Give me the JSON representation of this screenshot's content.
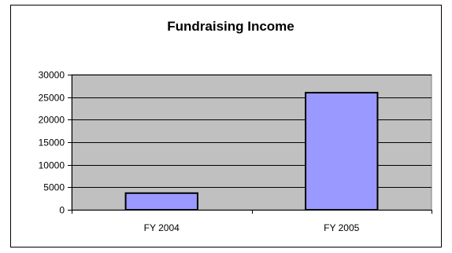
{
  "chart_data": {
    "type": "bar",
    "title": "Fundraising Income",
    "xlabel": "",
    "ylabel": "",
    "categories": [
      "FY 2004",
      "FY 2005"
    ],
    "values": [
      3700,
      26000
    ],
    "ylim": [
      0,
      30000
    ],
    "yticks": [
      0,
      5000,
      10000,
      15000,
      20000,
      25000,
      30000
    ],
    "ytick_labels": [
      "0",
      "5000",
      "10000",
      "15000",
      "20000",
      "25000",
      "30000"
    ],
    "grid": true,
    "legend": "none",
    "colors": {
      "bar_fill": "#9999ff",
      "bar_stroke": "#000000",
      "plot_background": "#c0c0c0",
      "gridline": "#000000"
    }
  }
}
